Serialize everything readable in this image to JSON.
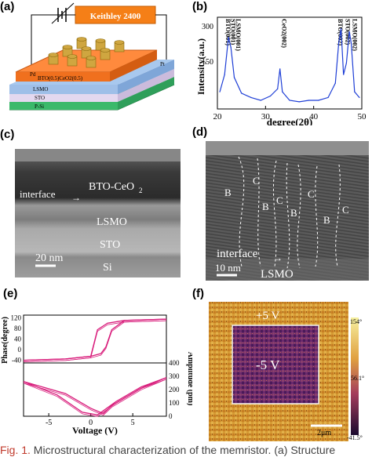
{
  "panels": {
    "a": {
      "label": "(a)",
      "instrument": "Keithley 2400",
      "layers": [
        "BTO(0.5)CeO2(0.5)",
        "LSMO",
        "STO",
        "P-Si"
      ],
      "electrode_labels": [
        "Pd",
        "Pt"
      ]
    },
    "b": {
      "label": "(b)",
      "peak_labels": [
        "BTO(001)",
        "STO(001)",
        "LSMO(001)",
        "CeO2(002)",
        "BTO(002)",
        "STO(002)",
        "LSMO(002)"
      ],
      "xlabel": "degree(2θ)",
      "ylabel": "Intensity(a.u.)",
      "xticks": [
        "20",
        "30",
        "40",
        "50"
      ],
      "yticks": [
        "300",
        "150"
      ]
    },
    "c": {
      "label": "(c)",
      "texts": {
        "interface": "interface",
        "top": "BTO-CeO",
        "top_sub": "2",
        "lsmo": "LSMO",
        "sto": "STO",
        "si": "Si"
      },
      "scalebar": "20 nm"
    },
    "d": {
      "label": "(d)",
      "domain_labels": [
        "B",
        "C",
        "B",
        "C",
        "B",
        "C",
        "B",
        "C"
      ],
      "interface": "interface",
      "lsmo": "LSMO",
      "scalebar": "10 nm"
    },
    "e": {
      "label": "(e)",
      "phase_ylabel": "Phase(degree)",
      "amp_ylabel": "Amplitude (pm)",
      "xlabel": "Voltage (V)",
      "xticks": [
        "-5",
        "0",
        "5"
      ],
      "phase_yticks": [
        "120",
        "80",
        "40",
        "0",
        "-40"
      ],
      "amp_yticks": [
        "400",
        "300",
        "200",
        "100",
        "0"
      ]
    },
    "f": {
      "label": "(f)",
      "outer": "+5 V",
      "inner": "-5 V",
      "scalebar": "2μm",
      "colorbar_ticks": [
        "154°",
        "56.1°",
        "-41.5°"
      ]
    }
  },
  "caption": {
    "fig": "Fig. 1.",
    "text": " Microstructural characterization of the memristor. (a) Structure"
  },
  "chart_data": [
    {
      "type": "line",
      "title": "",
      "xlabel": "degree(2θ)",
      "ylabel": "Intensity(a.u.)",
      "xlim": [
        20,
        50
      ],
      "ylim": [
        0,
        320
      ],
      "series": [
        {
          "x": [
            20.5,
            21.5,
            22.3,
            22.8,
            23.5,
            25,
            27,
            29,
            31,
            32.5,
            33.0,
            33.5,
            35,
            37,
            39,
            41,
            43,
            44.5,
            45.2,
            45.7,
            46.2,
            46.8,
            47.4,
            47.8,
            48.5,
            49.5
          ],
          "y": [
            60,
            120,
            250,
            215,
            110,
            55,
            40,
            30,
            45,
            70,
            140,
            60,
            30,
            25,
            30,
            30,
            40,
            90,
            230,
            280,
            120,
            160,
            270,
            230,
            60,
            40
          ]
        }
      ]
    },
    {
      "type": "line",
      "title": "",
      "xlabel": "Voltage (V)",
      "ylabel": "Phase(degree)",
      "xlim": [
        -8,
        9
      ],
      "ylim": [
        -50,
        130
      ],
      "series": [
        {
          "x": [
            -8,
            -3,
            0,
            0.8,
            2,
            4,
            9
          ],
          "y": [
            -40,
            -35,
            -25,
            75,
            100,
            110,
            115
          ]
        },
        {
          "x": [
            9,
            4,
            2.5,
            1.8,
            1.2,
            0,
            -3,
            -8
          ],
          "y": [
            115,
            110,
            75,
            10,
            -15,
            -25,
            -35,
            -40
          ]
        }
      ]
    },
    {
      "type": "line",
      "title": "",
      "xlabel": "Voltage (V)",
      "ylabel": "Amplitude (pm)",
      "xlim": [
        -8,
        9
      ],
      "ylim": [
        0,
        400
      ],
      "series": [
        {
          "x": [
            -8,
            -4,
            -1,
            0.8,
            3,
            6,
            9
          ],
          "y": [
            260,
            160,
            30,
            10,
            110,
            220,
            290
          ]
        },
        {
          "x": [
            9,
            6,
            2.5,
            1.5,
            0,
            -3,
            -8
          ],
          "y": [
            290,
            210,
            80,
            20,
            60,
            170,
            260
          ]
        }
      ]
    }
  ]
}
